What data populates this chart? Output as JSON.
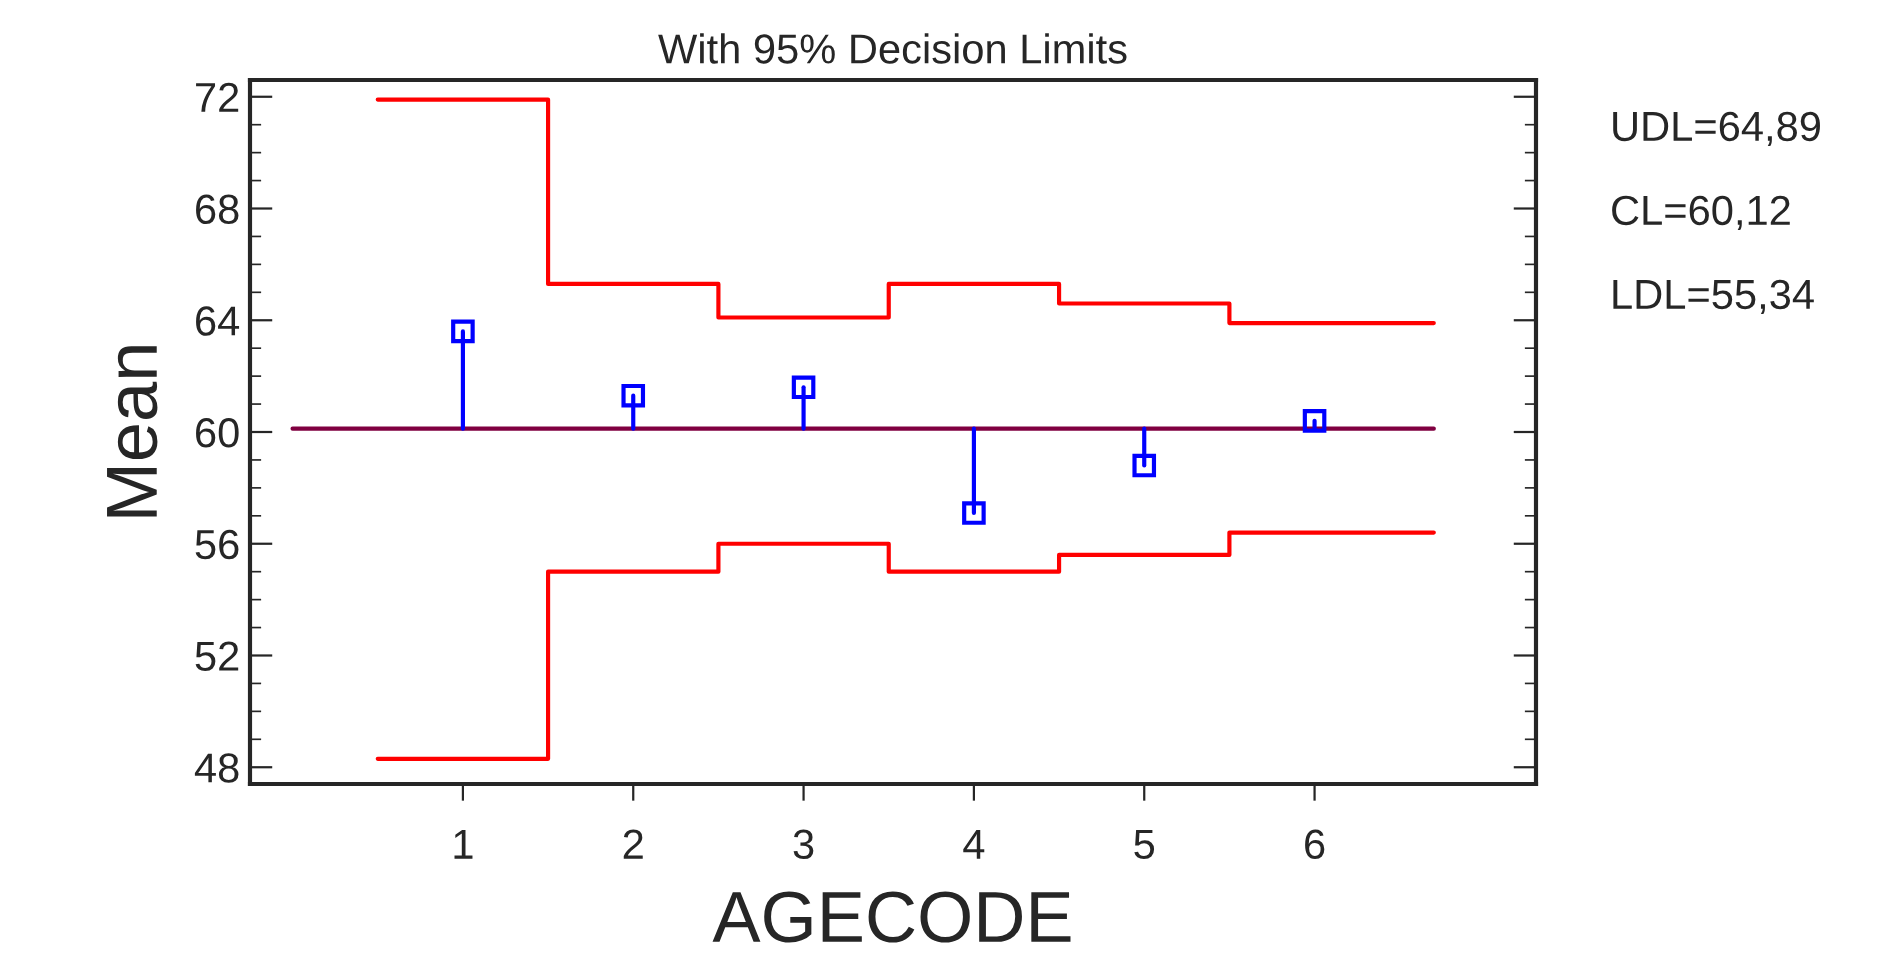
{
  "chart_data": {
    "type": "line",
    "title": "With 95% Decision Limits",
    "xlabel": "AGECODE",
    "ylabel": "Mean",
    "xlim": [
      -0.25,
      7.3
    ],
    "xticks": [
      1,
      2,
      3,
      4,
      5,
      6
    ],
    "ylim": [
      47.4,
      72.6
    ],
    "yticks": [
      48,
      52,
      56,
      60,
      64,
      68,
      72
    ],
    "grid": false,
    "legend": false,
    "annotations": [
      "UDL=64,89",
      "CL=60,12",
      "LDL=55,34"
    ],
    "series": [
      {
        "type": "step",
        "color": "#ff0000",
        "x": [
          0.5,
          1.5,
          2.5,
          3.5,
          4.5,
          5.5,
          6.7
        ],
        "values": [
          71.9,
          65.3,
          64.1,
          65.3,
          64.6,
          63.9,
          63.9
        ]
      },
      {
        "type": "step",
        "color": "#ff0000",
        "x": [
          0.5,
          1.5,
          2.5,
          3.5,
          4.5,
          5.5,
          6.7
        ],
        "values": [
          48.3,
          55.0,
          56.0,
          55.0,
          55.6,
          56.4,
          56.4
        ]
      },
      {
        "color": "#800040",
        "x": [
          0,
          6.7
        ],
        "values": [
          60.12,
          60.12
        ]
      },
      {
        "color": "#0000ff",
        "x": [
          1,
          1
        ],
        "values": [
          60.12,
          63.6
        ]
      },
      {
        "color": "#0000ff",
        "x": [
          2,
          2
        ],
        "values": [
          60.12,
          61.3
        ]
      },
      {
        "color": "#0000ff",
        "x": [
          3,
          3
        ],
        "values": [
          60.12,
          61.6
        ]
      },
      {
        "color": "#0000ff",
        "x": [
          4,
          4
        ],
        "values": [
          60.12,
          57.1
        ]
      },
      {
        "color": "#0000ff",
        "x": [
          5,
          5
        ],
        "values": [
          60.12,
          58.8
        ]
      },
      {
        "color": "#0000ff",
        "x": [
          6,
          6
        ],
        "values": [
          60.12,
          60.4
        ]
      },
      {
        "type": "scatter",
        "color": "#0000ff",
        "marker": "square",
        "x": [
          1,
          2,
          3,
          4,
          5,
          6
        ],
        "values": [
          63.6,
          61.3,
          61.6,
          57.1,
          58.8,
          60.4
        ]
      }
    ]
  }
}
